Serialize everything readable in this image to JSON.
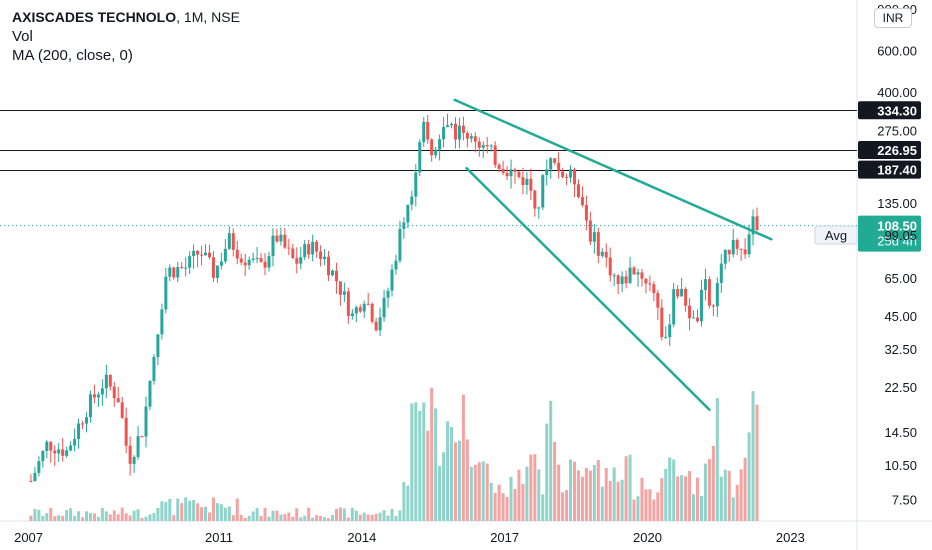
{
  "header": {
    "symbol": "AXISCADES TECHNOLO",
    "interval": "1M",
    "exchange": "NSE",
    "indicator_vol": "Vol",
    "indicator_ma": "MA (200, close, 0)"
  },
  "currency_label": "INR",
  "colors": {
    "up": "#26a69a",
    "down": "#ef5350",
    "vol_up": "#8fd3cb",
    "vol_down": "#f4a3a3",
    "trendline": "#22ab94",
    "hline": "#131722",
    "price_tag": "#22ab94"
  },
  "chart_data": {
    "type": "candlestick",
    "y_scale": "log",
    "y_range": [
      6.2,
      1000
    ],
    "x_range": [
      2006.4,
      2024.4
    ],
    "y_ticks": [
      "900.00",
      "600.00",
      "400.00",
      "275.00",
      "135.00",
      "65.00",
      "45.00",
      "32.50",
      "22.50",
      "14.50",
      "10.50",
      "7.50"
    ],
    "x_ticks": [
      "2007",
      "2011",
      "2014",
      "2017",
      "2020",
      "2023"
    ],
    "horizontal_levels": [
      "334.30",
      "226.95",
      "187.40"
    ],
    "last_price": "108.50",
    "countdown": "25d 4h",
    "avg_label": "Avg",
    "avg_value": "99.05",
    "trendlines": [
      {
        "from": {
          "year": 2015.95,
          "price": 370
        },
        "to": {
          "year": 2022.6,
          "price": 95
        }
      },
      {
        "from": {
          "year": 2016.2,
          "price": 190
        },
        "to": {
          "year": 2021.3,
          "price": 18
        }
      }
    ],
    "anchors": [
      [
        2007.05,
        9
      ],
      [
        2007.4,
        13
      ],
      [
        2007.8,
        12
      ],
      [
        2008.2,
        18
      ],
      [
        2008.6,
        24
      ],
      [
        2008.9,
        20
      ],
      [
        2009.1,
        11
      ],
      [
        2009.4,
        15
      ],
      [
        2009.7,
        38
      ],
      [
        2009.9,
        70
      ],
      [
        2010.3,
        72
      ],
      [
        2010.6,
        85
      ],
      [
        2010.9,
        68
      ],
      [
        2011.2,
        95
      ],
      [
        2011.5,
        80
      ],
      [
        2011.9,
        72
      ],
      [
        2012.2,
        98
      ],
      [
        2012.6,
        75
      ],
      [
        2012.9,
        90
      ],
      [
        2013.2,
        80
      ],
      [
        2013.5,
        62
      ],
      [
        2013.8,
        45
      ],
      [
        2014.05,
        55
      ],
      [
        2014.3,
        42
      ],
      [
        2014.5,
        52
      ],
      [
        2014.7,
        80
      ],
      [
        2014.9,
        125
      ],
      [
        2015.1,
        170
      ],
      [
        2015.3,
        280
      ],
      [
        2015.5,
        210
      ],
      [
        2015.8,
        300
      ],
      [
        2016.0,
        270
      ],
      [
        2016.3,
        265
      ],
      [
        2016.6,
        230
      ],
      [
        2016.9,
        200
      ],
      [
        2017.2,
        180
      ],
      [
        2017.5,
        165
      ],
      [
        2017.7,
        130
      ],
      [
        2017.9,
        210
      ],
      [
        2018.2,
        180
      ],
      [
        2018.5,
        170
      ],
      [
        2018.8,
        100
      ],
      [
        2019.1,
        80
      ],
      [
        2019.4,
        60
      ],
      [
        2019.7,
        72
      ],
      [
        2019.95,
        65
      ],
      [
        2020.2,
        55
      ],
      [
        2020.35,
        30
      ],
      [
        2020.55,
        60
      ],
      [
        2020.8,
        52
      ],
      [
        2021.0,
        40
      ],
      [
        2021.2,
        62
      ],
      [
        2021.35,
        45
      ],
      [
        2021.55,
        70
      ],
      [
        2021.8,
        100
      ],
      [
        2022.0,
        80
      ],
      [
        2022.2,
        110
      ],
      [
        2022.35,
        108.5
      ]
    ]
  }
}
